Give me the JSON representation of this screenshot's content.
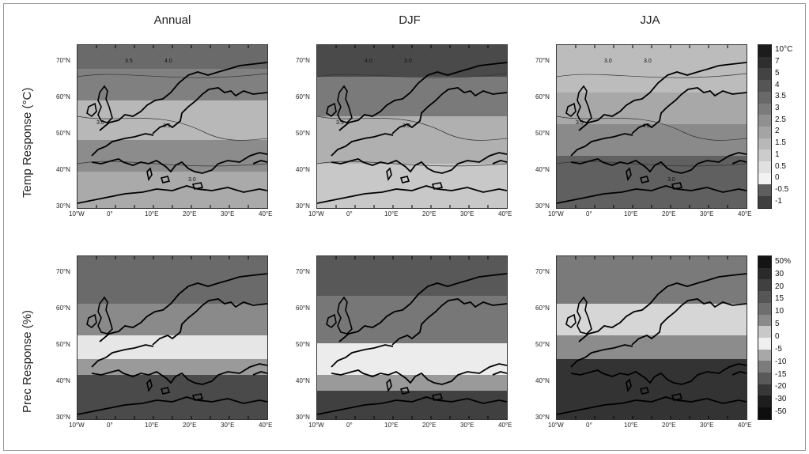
{
  "columns": [
    "Annual",
    "DJF",
    "JJA"
  ],
  "rows": [
    "Temp Response (°C)",
    "Prec Response (%)"
  ],
  "lat_ticks": [
    "70°N",
    "60°N",
    "50°N",
    "40°N",
    "30°N"
  ],
  "lon_ticks": [
    "10°W",
    "0°",
    "10°E",
    "20°E",
    "30°E",
    "40°E"
  ],
  "temp_colorbar": {
    "labels": [
      "10°C",
      "7",
      "5",
      "4",
      "3.5",
      "3",
      "2.5",
      "2",
      "1.5",
      "1",
      "0.5",
      "0",
      "-0.5",
      "-1"
    ],
    "colors": [
      "#1c1c1c",
      "#2e2e2e",
      "#434343",
      "#555555",
      "#686868",
      "#7b7b7b",
      "#909090",
      "#a4a4a4",
      "#b8b8b8",
      "#cccccc",
      "#e0e0e0",
      "#f2f2f2",
      "#5e5e5e",
      "#404040"
    ]
  },
  "prec_colorbar": {
    "labels": [
      "50%",
      "30",
      "20",
      "15",
      "10",
      "5",
      "0",
      "-5",
      "-10",
      "-15",
      "-20",
      "-30",
      "-50"
    ],
    "colors": [
      "#141414",
      "#2a2a2a",
      "#404040",
      "#565656",
      "#6e6e6e",
      "#8a8a8a",
      "#c8c8c8",
      "#efefef",
      "#a8a8a8",
      "#7c7c7c",
      "#595959",
      "#383838",
      "#1e1e1e",
      "#0e0e0e"
    ]
  },
  "contour_labels": {
    "annual": [
      "3.5",
      "4.0",
      "3.0",
      "3.5",
      "3.0"
    ],
    "djf": [
      "4.0",
      "3.0",
      "3.5",
      "3.0"
    ],
    "jja": [
      "3.0",
      "3.0",
      "3.5",
      "4.0",
      "3.0"
    ]
  }
}
